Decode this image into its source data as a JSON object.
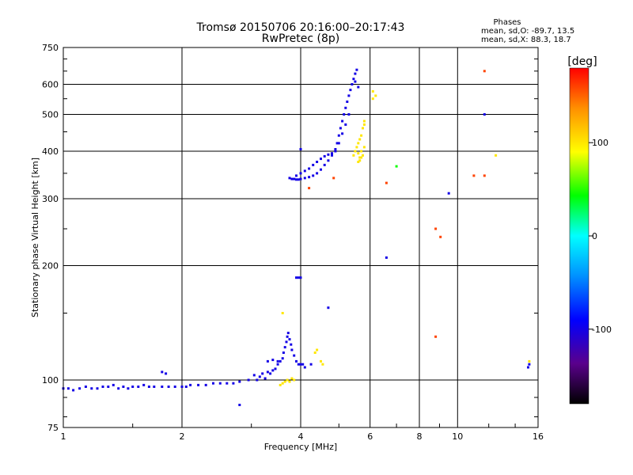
{
  "chart_data": {
    "type": "scatter",
    "title": "Tromsø 20150706 20:16:00–20:17:43",
    "subtitle": "RwPretec (8p)",
    "xlabel": "Frequency [MHz]",
    "ylabel": "Stationary phase Virtual Height [km]",
    "x_scale": "log2",
    "y_scale": "log",
    "xlim": [
      1,
      16
    ],
    "ylim": [
      75,
      750
    ],
    "x_ticks": [
      1,
      2,
      4,
      6,
      8,
      10,
      16
    ],
    "x_tick_labels": [
      "1",
      "2",
      "4",
      "6",
      "8",
      "10",
      "16"
    ],
    "y_ticks": [
      75,
      100,
      200,
      300,
      400,
      500,
      600,
      750
    ],
    "y_tick_labels": [
      "75",
      "100",
      "200",
      "300",
      "400",
      "500",
      "600",
      "750"
    ],
    "grid": true,
    "phase_info": {
      "title": "Phases",
      "line_o": "mean, sd,O: -89.7, 13.5",
      "line_x": "mean, sd,X: 88.3, 18.7"
    },
    "colorbar": {
      "label": "[deg]",
      "range": [
        -180,
        180
      ],
      "ticks": [
        100,
        0,
        -100
      ],
      "tick_labels": [
        "100",
        "0",
        "-100"
      ]
    },
    "series": [
      {
        "mode": "O",
        "phase_deg": -100,
        "points": [
          [
            1.0,
            95
          ],
          [
            1.03,
            95
          ],
          [
            1.06,
            94
          ],
          [
            1.1,
            95
          ],
          [
            1.14,
            96
          ],
          [
            1.18,
            95
          ],
          [
            1.22,
            95
          ],
          [
            1.26,
            96
          ],
          [
            1.3,
            96
          ],
          [
            1.34,
            97
          ],
          [
            1.38,
            95
          ],
          [
            1.42,
            96
          ],
          [
            1.46,
            95
          ],
          [
            1.5,
            96
          ],
          [
            1.55,
            96
          ],
          [
            1.6,
            97
          ],
          [
            1.65,
            96
          ],
          [
            1.7,
            96
          ],
          [
            1.78,
            96
          ],
          [
            1.85,
            96
          ],
          [
            1.92,
            96
          ],
          [
            2.0,
            96
          ],
          [
            2.05,
            96
          ],
          [
            2.1,
            97
          ],
          [
            2.2,
            97
          ],
          [
            2.3,
            97
          ],
          [
            2.4,
            98
          ],
          [
            2.5,
            98
          ],
          [
            2.6,
            98
          ],
          [
            2.7,
            98
          ],
          [
            2.8,
            99
          ],
          [
            2.95,
            100
          ],
          [
            3.05,
            103
          ],
          [
            3.1,
            100
          ],
          [
            3.15,
            102
          ],
          [
            3.2,
            104
          ],
          [
            3.25,
            101
          ],
          [
            3.3,
            105
          ],
          [
            3.35,
            104
          ],
          [
            3.4,
            106
          ],
          [
            3.45,
            107
          ],
          [
            3.5,
            110
          ],
          [
            3.55,
            112
          ],
          [
            3.6,
            114
          ],
          [
            3.62,
            118
          ],
          [
            3.65,
            122
          ],
          [
            3.68,
            126
          ],
          [
            3.7,
            130
          ],
          [
            3.72,
            133
          ],
          [
            3.75,
            128
          ],
          [
            3.78,
            124
          ],
          [
            3.8,
            120
          ],
          [
            3.85,
            116
          ],
          [
            3.9,
            112
          ],
          [
            3.95,
            110
          ],
          [
            4.0,
            110
          ],
          [
            4.05,
            110
          ],
          [
            1.78,
            105
          ],
          [
            1.82,
            104
          ],
          [
            3.3,
            112
          ],
          [
            3.4,
            113
          ],
          [
            3.5,
            112
          ],
          [
            3.9,
            186
          ],
          [
            3.95,
            186
          ],
          [
            4.0,
            186
          ],
          [
            4.1,
            108
          ],
          [
            4.25,
            110
          ],
          [
            4.7,
            155
          ],
          [
            3.75,
            340
          ],
          [
            3.8,
            338
          ],
          [
            3.85,
            338
          ],
          [
            3.9,
            337
          ],
          [
            3.95,
            337
          ],
          [
            4.0,
            338
          ],
          [
            4.1,
            340
          ],
          [
            4.2,
            342
          ],
          [
            4.3,
            345
          ],
          [
            4.4,
            350
          ],
          [
            4.5,
            358
          ],
          [
            4.6,
            368
          ],
          [
            4.7,
            378
          ],
          [
            4.8,
            390
          ],
          [
            4.9,
            405
          ],
          [
            4.95,
            420
          ],
          [
            5.0,
            440
          ],
          [
            5.05,
            460
          ],
          [
            5.1,
            480
          ],
          [
            5.15,
            500
          ],
          [
            5.2,
            520
          ],
          [
            5.25,
            540
          ],
          [
            5.3,
            560
          ],
          [
            5.35,
            580
          ],
          [
            5.4,
            600
          ],
          [
            5.45,
            620
          ],
          [
            5.5,
            640
          ],
          [
            5.55,
            655
          ],
          [
            3.9,
            345
          ],
          [
            4.0,
            350
          ],
          [
            4.1,
            355
          ],
          [
            4.2,
            360
          ],
          [
            4.3,
            368
          ],
          [
            4.4,
            375
          ],
          [
            4.5,
            382
          ],
          [
            4.6,
            388
          ],
          [
            4.7,
            392
          ],
          [
            4.8,
            395
          ],
          [
            4.9,
            400
          ],
          [
            5.0,
            420
          ],
          [
            5.1,
            445
          ],
          [
            5.2,
            470
          ],
          [
            5.3,
            500
          ],
          [
            4.0,
            405
          ],
          [
            5.5,
            610
          ],
          [
            5.6,
            590
          ],
          [
            2.8,
            86
          ],
          [
            6.6,
            210
          ],
          [
            9.5,
            310
          ],
          [
            11.7,
            500
          ],
          [
            15.2,
            110
          ],
          [
            15.1,
            108
          ]
        ]
      },
      {
        "mode": "X",
        "phase_deg": 100,
        "points": [
          [
            3.55,
            97
          ],
          [
            3.6,
            98
          ],
          [
            3.65,
            99
          ],
          [
            3.7,
            100
          ],
          [
            3.75,
            99
          ],
          [
            3.8,
            101
          ],
          [
            3.85,
            100
          ],
          [
            4.35,
            118
          ],
          [
            4.4,
            120
          ],
          [
            4.5,
            112
          ],
          [
            4.55,
            110
          ],
          [
            3.6,
            150
          ],
          [
            5.45,
            390
          ],
          [
            5.5,
            400
          ],
          [
            5.55,
            410
          ],
          [
            5.6,
            420
          ],
          [
            5.65,
            430
          ],
          [
            5.7,
            440
          ],
          [
            5.75,
            460
          ],
          [
            5.6,
            395
          ],
          [
            5.65,
            385
          ],
          [
            5.7,
            400
          ],
          [
            5.8,
            480
          ],
          [
            5.75,
            390
          ],
          [
            5.8,
            410
          ],
          [
            5.6,
            375
          ],
          [
            5.65,
            378
          ],
          [
            5.7,
            385
          ],
          [
            5.8,
            470
          ],
          [
            6.1,
            550
          ],
          [
            6.1,
            575
          ],
          [
            6.2,
            560
          ],
          [
            12.5,
            390
          ],
          [
            15.2,
            112
          ]
        ]
      },
      {
        "mode": "other",
        "phase_deg": 160,
        "points": [
          [
            4.2,
            320
          ],
          [
            4.85,
            340
          ],
          [
            6.6,
            330
          ],
          [
            8.8,
            250
          ],
          [
            9.05,
            238
          ],
          [
            8.8,
            130
          ],
          [
            11.0,
            345
          ],
          [
            11.7,
            345
          ],
          [
            11.7,
            650
          ]
        ]
      },
      {
        "mode": "other",
        "phase_deg": 45,
        "points": [
          [
            7.0,
            365
          ]
        ]
      }
    ]
  }
}
